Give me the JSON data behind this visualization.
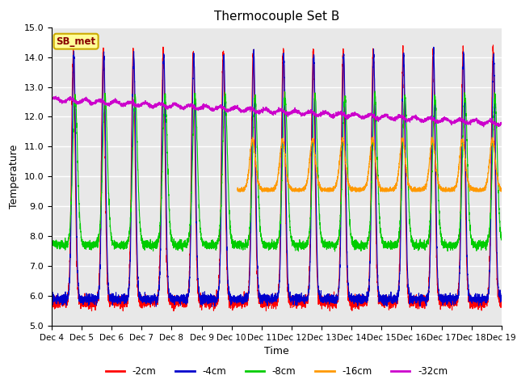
{
  "title": "Thermocouple Set B",
  "xlabel": "Time",
  "ylabel": "Temperature",
  "ylim": [
    5.0,
    15.0
  ],
  "yticks": [
    5.0,
    6.0,
    7.0,
    8.0,
    9.0,
    10.0,
    11.0,
    12.0,
    13.0,
    14.0,
    15.0
  ],
  "xtick_labels": [
    "Dec 4",
    "Dec 5",
    "Dec 6",
    "Dec 7",
    "Dec 8",
    "Dec 9",
    "Dec 10",
    "Dec 11",
    "Dec 12",
    "Dec 13",
    "Dec 14",
    "Dec 15",
    "Dec 16",
    "Dec 17",
    "Dec 18",
    "Dec 19"
  ],
  "colors": {
    "-2cm": "#ff0000",
    "-4cm": "#0000cc",
    "-8cm": "#00cc00",
    "-16cm": "#ff9900",
    "-32cm": "#cc00cc"
  },
  "annotation_text": "SB_met",
  "annotation_bg": "#ffff99",
  "annotation_border": "#ccaa00",
  "background_color": "#e8e8e8",
  "grid_color": "#ffffff"
}
